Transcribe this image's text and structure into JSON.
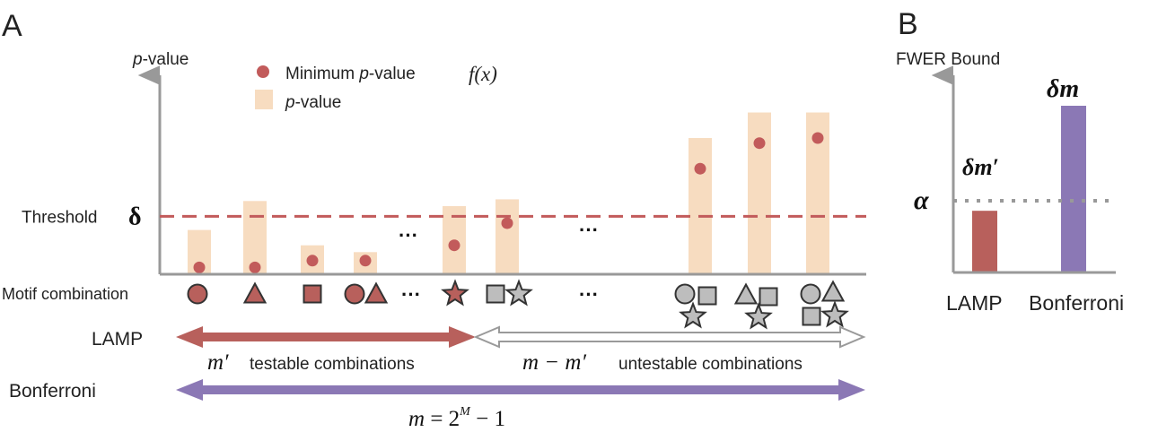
{
  "panel_a": {
    "letter": "A",
    "y_axis_label_italic": "p",
    "y_axis_label_rest": "-value",
    "legend": {
      "dot_label_prefix": "Minimum ",
      "dot_label_italic": "p",
      "dot_label_suffix": "-value",
      "dot_formula": "f(x)",
      "bar_label_italic": "p",
      "bar_label_rest": "-value"
    },
    "threshold_label": "Threshold",
    "threshold_symbol": "δ",
    "motif_label": "Motif combination",
    "ellipsis": "···",
    "lamp_label": "LAMP",
    "bonferroni_label": "Bonferroni",
    "testable_symbol": "m′",
    "testable_text": "testable combinations",
    "untestable_symbol": "m − m′",
    "untestable_text": "untestable combinations",
    "formula_m": "m",
    "formula_eq": " = 2",
    "formula_exp": "M",
    "formula_tail": " − 1"
  },
  "panel_b": {
    "letter": "B",
    "y_axis_label": "FWER Bound",
    "alpha_symbol": "α",
    "lamp_value_label": "δm′",
    "bonferroni_value_label": "δm",
    "x_labels": [
      "LAMP",
      "Bonferroni"
    ]
  },
  "colors": {
    "axis": "#999999",
    "bar": "#f7dcc0",
    "dot": "#c25b5b",
    "threshold": "#c25b5b",
    "lamp": "#b8605c",
    "bonferroni": "#8b78b5",
    "gray_shape": "#bdbdbd"
  },
  "chart_data": [
    {
      "type": "bar",
      "ylim": [
        0,
        1
      ],
      "threshold": 0.34,
      "categories": [
        "circle",
        "triangle",
        "square",
        "circle+triangle",
        "star",
        "square+star",
        "circle+square+star",
        "triangle+square+star",
        "circle+triangle+square+star"
      ],
      "shape_fill": [
        "lamp",
        "lamp",
        "lamp",
        "lamp",
        "lamp",
        "gray",
        "gray",
        "gray",
        "gray"
      ],
      "series": [
        {
          "name": "p-value",
          "values": [
            0.26,
            0.43,
            0.17,
            0.13,
            0.4,
            0.44,
            0.8,
            0.95,
            0.95
          ]
        },
        {
          "name": "Minimum p-value f(x)",
          "values": [
            0.04,
            0.04,
            0.08,
            0.08,
            0.17,
            0.3,
            0.62,
            0.77,
            0.8
          ]
        }
      ]
    },
    {
      "type": "bar",
      "categories": [
        "LAMP",
        "Bonferroni"
      ],
      "values": [
        0.37,
        1.0
      ],
      "alpha": 0.42,
      "ylim": [
        0,
        1.25
      ]
    }
  ]
}
